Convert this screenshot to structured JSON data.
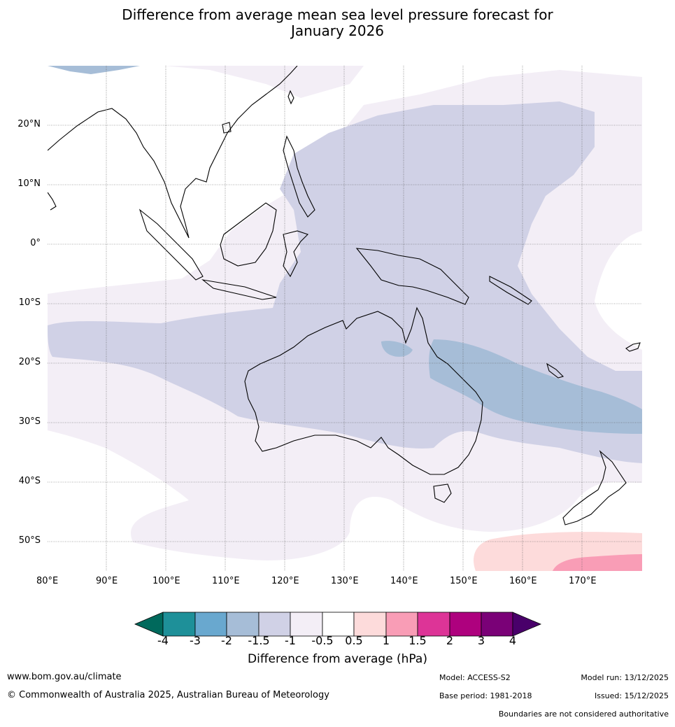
{
  "title_line1": "Difference from average mean sea level pressure forecast for",
  "title_line2": "January 2026",
  "map": {
    "lon_labels": [
      "80°E",
      "90°E",
      "100°E",
      "110°E",
      "120°E",
      "130°E",
      "140°E",
      "150°E",
      "160°E",
      "170°E"
    ],
    "lat_labels": [
      "20°N",
      "10°N",
      "0°",
      "10°S",
      "20°S",
      "30°S",
      "40°S",
      "50°S"
    ],
    "extent": {
      "lon_min": 80,
      "lon_max": 180,
      "lat_min": -55,
      "lat_max": 30
    }
  },
  "colorbar": {
    "title": "Difference from average (hPa)",
    "tick_labels": [
      "-4",
      "-3",
      "-2",
      "-1.5",
      "-1",
      "-0.5",
      "0.5",
      "1",
      "1.5",
      "2",
      "3",
      "4"
    ],
    "colors": {
      "below_-4": "#00695c",
      "-4_-3": "#1e9099",
      "-3_-2": "#69a8cf",
      "-2_-1.5": "#a6bdd7",
      "-1.5_-1": "#d0d1e6",
      "-1_-0.5": "#f3eef6",
      "-0.5_0.5": "#ffffff",
      "0.5_1": "#fddbdb",
      "1_1.5": "#f99db6",
      "1.5_2": "#dd3497",
      "2_3": "#ae017e",
      "3_4": "#7a0177",
      "above_4": "#49006a"
    }
  },
  "footer": {
    "website": "www.bom.gov.au/climate",
    "copyright": "© Commonwealth of Australia 2025, Australian Bureau of Meteorology",
    "model": "Model: ACCESS-S2",
    "base_period": "Base period: 1981-2018",
    "model_run": "Model run: 13/12/2025",
    "issued": "Issued: 15/12/2025",
    "disclaimer": "Boundaries are not considered authoritative"
  }
}
